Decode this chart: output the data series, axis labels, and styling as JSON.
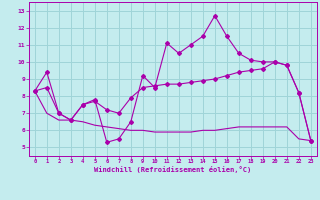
{
  "xlabel": "Windchill (Refroidissement éolien,°C)",
  "xlim": [
    -0.5,
    23.5
  ],
  "ylim": [
    4.5,
    13.5
  ],
  "yticks": [
    5,
    6,
    7,
    8,
    9,
    10,
    11,
    12,
    13
  ],
  "xticks": [
    0,
    1,
    2,
    3,
    4,
    5,
    6,
    7,
    8,
    9,
    10,
    11,
    12,
    13,
    14,
    15,
    16,
    17,
    18,
    19,
    20,
    21,
    22,
    23
  ],
  "bg_color": "#c4ecee",
  "grid_color": "#9fd4d8",
  "line_color": "#aa00aa",
  "line1_x": [
    0,
    1,
    2,
    3,
    4,
    5,
    6,
    7,
    8,
    9,
    10,
    11,
    12,
    13,
    14,
    15,
    16,
    17,
    18,
    19,
    20,
    21,
    22,
    23
  ],
  "line1_y": [
    8.3,
    9.4,
    7.0,
    6.6,
    7.5,
    7.8,
    5.3,
    5.5,
    6.5,
    9.2,
    8.5,
    11.1,
    10.5,
    11.0,
    11.5,
    12.7,
    11.5,
    10.5,
    10.1,
    10.0,
    10.0,
    9.8,
    8.2,
    5.4
  ],
  "line2_x": [
    0,
    1,
    2,
    3,
    4,
    5,
    6,
    7,
    8,
    9,
    10,
    11,
    12,
    13,
    14,
    15,
    16,
    17,
    18,
    19,
    20,
    21,
    22,
    23
  ],
  "line2_y": [
    8.3,
    8.5,
    7.0,
    6.6,
    7.5,
    7.7,
    7.2,
    7.0,
    7.9,
    8.5,
    8.6,
    8.7,
    8.7,
    8.8,
    8.9,
    9.0,
    9.2,
    9.4,
    9.5,
    9.6,
    10.0,
    9.8,
    8.2,
    5.4
  ],
  "line3_x": [
    0,
    1,
    2,
    3,
    4,
    5,
    6,
    7,
    8,
    9,
    10,
    11,
    12,
    13,
    14,
    15,
    16,
    17,
    18,
    19,
    20,
    21,
    22,
    23
  ],
  "line3_y": [
    8.3,
    7.0,
    6.6,
    6.6,
    6.5,
    6.3,
    6.2,
    6.1,
    6.0,
    6.0,
    5.9,
    5.9,
    5.9,
    5.9,
    6.0,
    6.0,
    6.1,
    6.2,
    6.2,
    6.2,
    6.2,
    6.2,
    5.5,
    5.4
  ]
}
